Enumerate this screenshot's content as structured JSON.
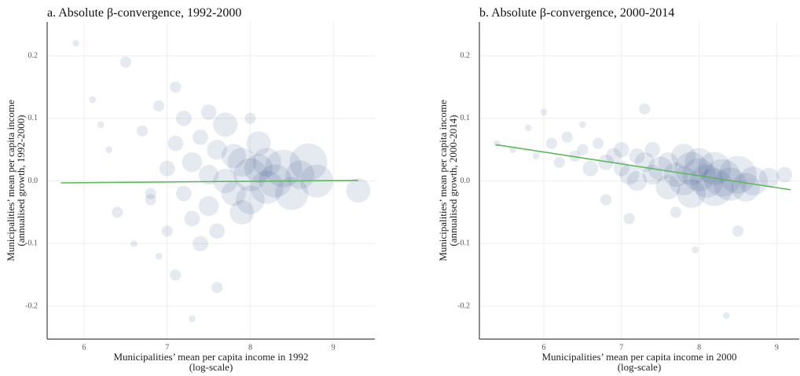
{
  "chart_data": [
    {
      "type": "scatter",
      "title": "a. Absolute β-convergence, 1992-2000",
      "x_label": [
        "Municipalities’ mean per capita income in 1992",
        "(log-scale)"
      ],
      "y_label": [
        "Municipalities’ mean per capita income",
        "(annualised growth, 1992-2000)"
      ],
      "xlim": [
        5.555,
        9.5
      ],
      "ylim": [
        -0.2525,
        0.254
      ],
      "xticks": [
        6,
        7,
        8,
        9
      ],
      "yticks": [
        0.2,
        0.1,
        {
          "value": 0,
          "label": "0.0"
        },
        -0.1,
        -0.2
      ],
      "grid": true,
      "point_alpha": 0.13,
      "series": [
        {
          "color": "#34568b",
          "x": [
            5.9,
            6.1,
            6.3,
            6.4,
            6.5,
            6.6,
            6.7,
            6.8,
            6.9,
            7.0,
            7.0,
            7.1,
            7.1,
            7.2,
            7.2,
            7.3,
            7.3,
            7.4,
            7.4,
            7.5,
            7.5,
            7.6,
            7.6,
            7.7,
            7.7,
            7.8,
            7.8,
            7.9,
            7.9,
            8.0,
            8.0,
            8.1,
            8.1,
            8.2,
            8.2,
            8.3,
            8.4,
            8.5,
            8.6,
            8.7,
            8.8,
            9.3,
            6.2,
            6.9,
            7.1,
            7.6,
            8.0,
            7.3,
            6.8,
            7.5
          ],
          "values": [
            0.22,
            0.13,
            0.05,
            -0.05,
            0.19,
            -0.1,
            0.08,
            -0.03,
            0.12,
            0.02,
            -0.08,
            0.06,
            -0.15,
            0.1,
            -0.02,
            -0.06,
            0.03,
            0.07,
            -0.1,
            0.01,
            -0.04,
            0.05,
            -0.08,
            0.09,
            0.0,
            -0.02,
            0.04,
            0.03,
            -0.05,
            0.01,
            -0.03,
            0.02,
            0.06,
            -0.01,
            0.03,
            0.0,
            0.02,
            -0.02,
            0.01,
            0.03,
            0.0,
            -0.015,
            0.09,
            -0.12,
            0.15,
            -0.17,
            0.1,
            -0.22,
            -0.02,
            0.11
          ],
          "sizes": [
            1,
            1,
            1,
            2,
            2,
            1,
            2,
            2,
            2,
            3,
            2,
            3,
            2,
            3,
            3,
            3,
            4,
            3,
            3,
            4,
            4,
            4,
            3,
            5,
            5,
            5,
            5,
            6,
            5,
            7,
            6,
            6,
            5,
            7,
            6,
            7,
            8,
            7,
            6,
            8,
            7,
            5,
            1,
            1,
            2,
            2,
            2,
            1,
            2,
            3
          ]
        }
      ],
      "fit": {
        "color": "#5cb85c",
        "x": [
          5.72,
          9.3
        ],
        "values": [
          -0.003,
          0.001
        ]
      }
    },
    {
      "type": "scatter",
      "title": "b. Absolute β-convergence, 2000-2014",
      "x_label": [
        "Municipalities’ mean per capita income in 2000",
        "(log-scale)"
      ],
      "y_label": [
        "Municipalities’ mean per capita income",
        "(annualised growth, 2000-2014)"
      ],
      "xlim": [
        5.17,
        9.29
      ],
      "ylim": [
        -0.2525,
        0.254
      ],
      "xticks": [
        6,
        7,
        8,
        9
      ],
      "yticks": [
        0.2,
        0.1,
        {
          "value": 0,
          "label": "0.0"
        },
        -0.1,
        -0.2
      ],
      "grid": true,
      "point_alpha": 0.13,
      "series": [
        {
          "color": "#34568b",
          "x": [
            5.4,
            5.6,
            5.8,
            5.9,
            6.0,
            6.1,
            6.2,
            6.3,
            6.4,
            6.5,
            6.6,
            6.7,
            6.8,
            6.9,
            7.0,
            7.0,
            7.1,
            7.2,
            7.2,
            7.3,
            7.4,
            7.4,
            7.5,
            7.6,
            7.6,
            7.7,
            7.8,
            7.8,
            7.9,
            7.9,
            8.0,
            8.0,
            8.1,
            8.2,
            8.2,
            8.3,
            8.4,
            8.5,
            8.6,
            8.7,
            8.9,
            9.1,
            6.8,
            7.3,
            7.7,
            8.35,
            8.5,
            6.5,
            7.1,
            7.95
          ],
          "values": [
            0.06,
            0.05,
            0.085,
            0.04,
            0.11,
            0.06,
            0.03,
            0.07,
            0.04,
            0.05,
            0.02,
            0.06,
            0.03,
            0.04,
            0.02,
            0.05,
            0.01,
            0.04,
            0.0,
            0.03,
            0.01,
            0.05,
            0.02,
            -0.01,
            0.03,
            0.01,
            0.0,
            0.04,
            0.02,
            -0.02,
            0.01,
            0.03,
            0.0,
            -0.01,
            0.02,
            0.005,
            -0.005,
            0.01,
            -0.01,
            0.0,
            0.005,
            0.01,
            -0.03,
            0.115,
            -0.05,
            -0.215,
            -0.08,
            0.09,
            -0.06,
            -0.11
          ],
          "sizes": [
            1,
            1,
            1,
            1,
            1,
            2,
            2,
            2,
            2,
            2,
            3,
            2,
            3,
            3,
            3,
            3,
            4,
            3,
            4,
            4,
            4,
            3,
            5,
            5,
            4,
            5,
            6,
            5,
            7,
            6,
            7,
            6,
            7,
            8,
            7,
            8,
            7,
            8,
            6,
            6,
            4,
            3,
            2,
            2,
            2,
            1,
            2,
            1,
            2,
            1
          ]
        }
      ],
      "fit": {
        "color": "#5cb85c",
        "x": [
          5.38,
          9.18
        ],
        "values": [
          0.058,
          -0.014
        ]
      }
    }
  ]
}
